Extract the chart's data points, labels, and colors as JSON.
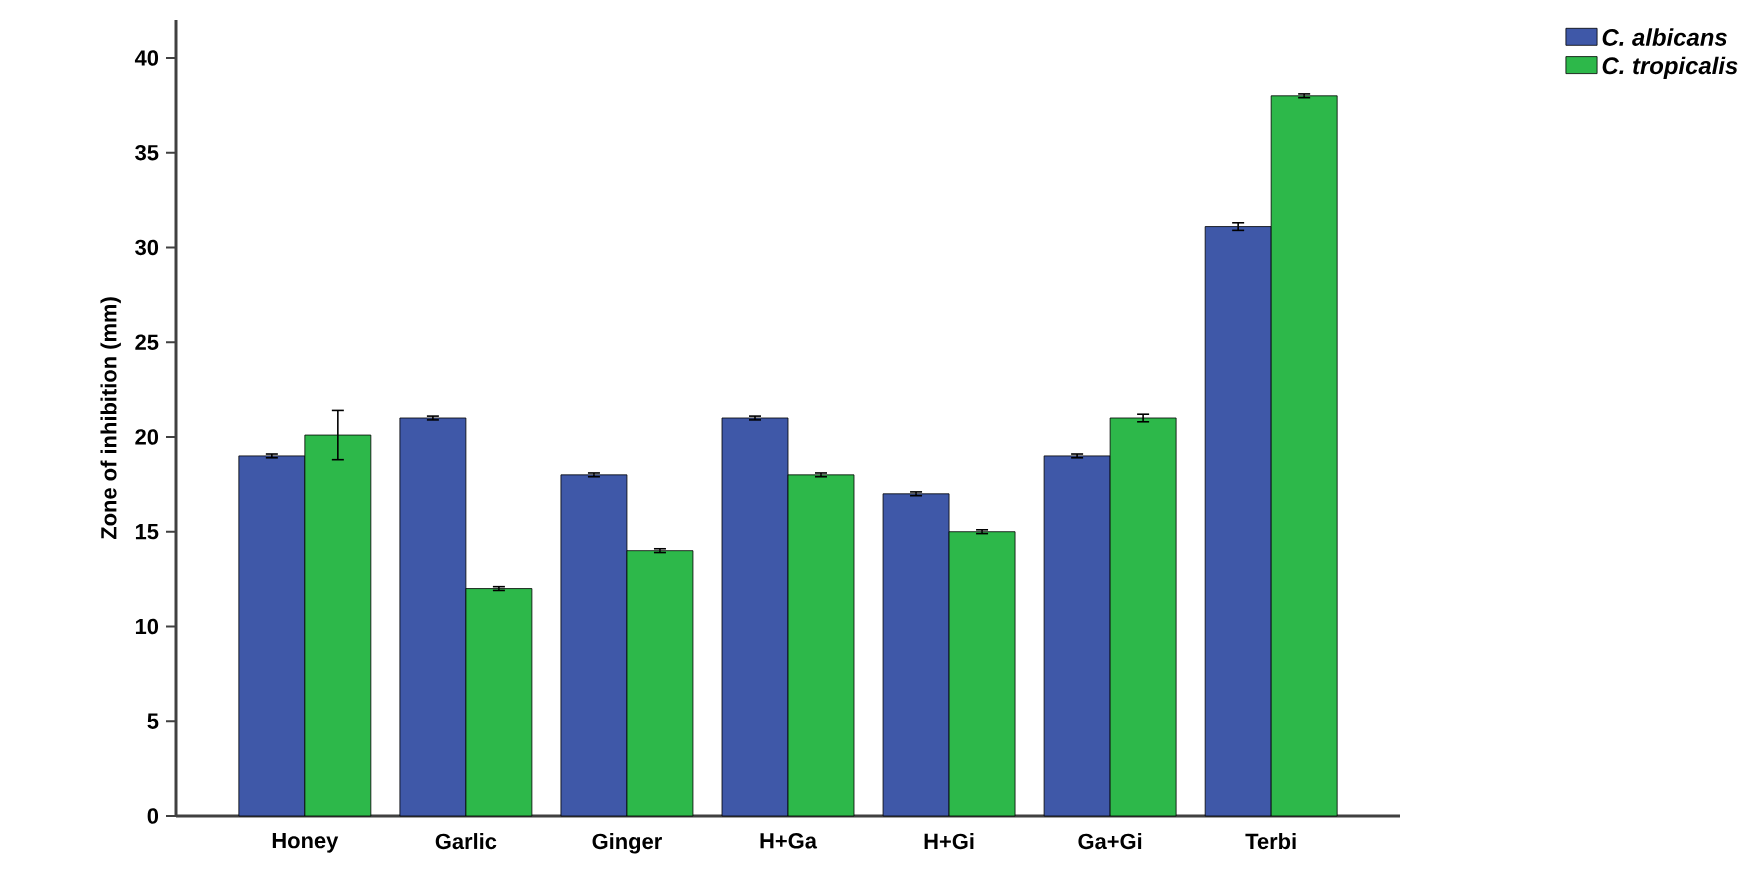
{
  "chart_data": {
    "type": "bar",
    "ylabel": "Zone of inhibition (mm)",
    "categories": [
      "Honey",
      "Garlic",
      "Ginger",
      "H+Ga",
      "H+Gi",
      "Ga+Gi",
      "Terbi"
    ],
    "series": [
      {
        "name": "C. albicans",
        "color": "#3f58a8",
        "values": [
          19,
          21,
          18,
          21,
          17,
          19,
          31.1
        ],
        "errors": [
          0.1,
          0.1,
          0.1,
          0.1,
          0.1,
          0.1,
          0.2
        ]
      },
      {
        "name": "C. tropicalis",
        "color": "#2db84a",
        "values": [
          20.1,
          12,
          14,
          18,
          15,
          21,
          38
        ],
        "errors": [
          1.3,
          0.1,
          0.1,
          0.1,
          0.1,
          0.2,
          0.1
        ]
      }
    ],
    "ylim": [
      0,
      42
    ],
    "yticks": [
      0,
      5,
      10,
      15,
      20,
      25,
      30,
      35,
      40
    ],
    "legend": "top right",
    "grid": false
  }
}
